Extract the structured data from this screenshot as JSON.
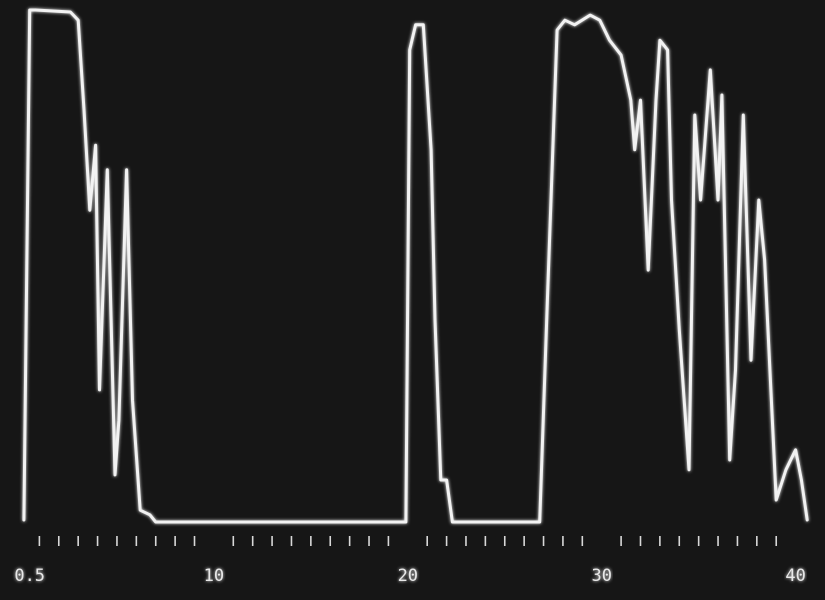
{
  "chart_data": {
    "type": "line",
    "x": [
      0.2,
      0.5,
      0.8,
      2.6,
      3.0,
      3.3,
      3.6,
      3.9,
      4.1,
      4.5,
      4.9,
      5.1,
      5.5,
      5.8,
      6.2,
      6.7,
      7.0,
      19.9,
      20.1,
      20.4,
      20.8,
      21.2,
      21.4,
      21.7,
      22.0,
      22.3,
      26.8,
      27.2,
      27.7,
      28.1,
      28.6,
      29.4,
      29.9,
      30.4,
      31.0,
      31.5,
      31.7,
      32.0,
      32.4,
      32.8,
      33.0,
      33.4,
      33.6,
      34.0,
      34.5,
      34.8,
      35.1,
      35.6,
      36.0,
      36.2,
      36.6,
      36.9,
      37.3,
      37.7,
      38.1,
      38.4,
      39.0,
      39.5,
      40.0,
      40.3,
      40.6
    ],
    "values": [
      0.4,
      100,
      100,
      99.6,
      98.0,
      80.5,
      60.9,
      73.6,
      25.8,
      68.8,
      9.2,
      19.9,
      68.8,
      23.8,
      2.3,
      1.4,
      0,
      0,
      92.2,
      97.1,
      97.1,
      72.7,
      39.5,
      8.2,
      8.2,
      0,
      0,
      43.4,
      96.1,
      98.0,
      97.1,
      99.0,
      98.0,
      94.1,
      91.2,
      82.4,
      72.7,
      82.4,
      49.2,
      82.4,
      94.1,
      92.2,
      62.9,
      37.5,
      10.2,
      79.5,
      62.9,
      88.3,
      62.9,
      83.4,
      12.1,
      29.7,
      79.5,
      31.6,
      62.9,
      51.2,
      4.3,
      10.2,
      14.1,
      8.2,
      0.4
    ],
    "color": "#f2f2f2",
    "xlim": [
      0,
      41
    ],
    "ylim": [
      0,
      100
    ],
    "xticks": [
      {
        "value": 0.5,
        "label": "0.5"
      },
      10,
      20,
      30,
      40
    ],
    "minor_xticks": [
      1,
      2,
      3,
      4,
      5,
      6,
      7,
      8,
      9,
      11,
      12,
      13,
      14,
      15,
      16,
      17,
      18,
      19,
      21,
      22,
      23,
      24,
      25,
      26,
      27,
      28,
      29,
      31,
      32,
      33,
      34,
      35,
      36,
      37,
      38,
      39
    ]
  }
}
